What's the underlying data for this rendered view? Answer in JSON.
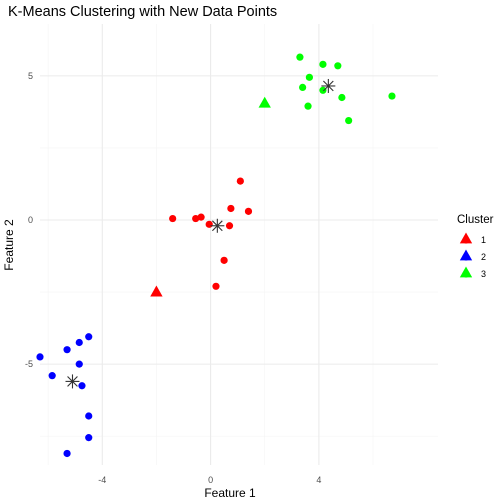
{
  "chart_data": {
    "type": "scatter",
    "title": "K-Means Clustering with New Data Points",
    "xlabel": "Feature 1",
    "ylabel": "Feature 2",
    "xlim": [
      -6.3,
      8.4
    ],
    "ylim": [
      -8.5,
      6.8
    ],
    "x_ticks": [
      -4,
      0,
      4
    ],
    "y_ticks": [
      -5,
      0,
      5
    ],
    "grid": true,
    "legend": {
      "title": "Cluster",
      "position": "right",
      "entries": [
        {
          "label": "1",
          "color": "#FF0000"
        },
        {
          "label": "2",
          "color": "#0000FF"
        },
        {
          "label": "3",
          "color": "#00FF00"
        }
      ]
    },
    "series": [
      {
        "cluster": "1",
        "color": "#FF0000",
        "points": [
          {
            "x": 1.1,
            "y": 1.35
          },
          {
            "x": 1.4,
            "y": 0.3
          },
          {
            "x": 0.75,
            "y": 0.4
          },
          {
            "x": -0.35,
            "y": 0.1
          },
          {
            "x": -0.55,
            "y": 0.05
          },
          {
            "x": -1.4,
            "y": 0.05
          },
          {
            "x": -0.05,
            "y": -0.15
          },
          {
            "x": 0.7,
            "y": -0.2
          },
          {
            "x": 0.5,
            "y": -1.4
          },
          {
            "x": 0.2,
            "y": -2.3
          }
        ]
      },
      {
        "cluster": "2",
        "color": "#0000FF",
        "points": [
          {
            "x": -4.5,
            "y": -4.05
          },
          {
            "x": -4.85,
            "y": -4.25
          },
          {
            "x": -5.3,
            "y": -4.5
          },
          {
            "x": -6.3,
            "y": -4.75
          },
          {
            "x": -4.85,
            "y": -5.0
          },
          {
            "x": -5.85,
            "y": -5.4
          },
          {
            "x": -4.75,
            "y": -5.75
          },
          {
            "x": -4.5,
            "y": -6.8
          },
          {
            "x": -4.5,
            "y": -7.55
          },
          {
            "x": -5.3,
            "y": -8.1
          }
        ]
      },
      {
        "cluster": "3",
        "color": "#00FF00",
        "points": [
          {
            "x": 3.3,
            "y": 5.65
          },
          {
            "x": 4.15,
            "y": 5.4
          },
          {
            "x": 4.7,
            "y": 5.35
          },
          {
            "x": 3.65,
            "y": 4.95
          },
          {
            "x": 3.4,
            "y": 4.6
          },
          {
            "x": 4.15,
            "y": 4.5
          },
          {
            "x": 4.85,
            "y": 4.25
          },
          {
            "x": 6.7,
            "y": 4.3
          },
          {
            "x": 3.6,
            "y": 3.95
          },
          {
            "x": 5.1,
            "y": 3.45
          }
        ]
      }
    ],
    "new_points": [
      {
        "cluster": "1",
        "color": "#FF0000",
        "x": -2.0,
        "y": -2.5
      },
      {
        "cluster": "3",
        "color": "#00FF00",
        "x": 2.0,
        "y": 4.05
      }
    ],
    "centroids": [
      {
        "cluster": "1",
        "x": 0.25,
        "y": -0.2
      },
      {
        "cluster": "2",
        "x": -5.1,
        "y": -5.6
      },
      {
        "cluster": "3",
        "x": 4.35,
        "y": 4.65
      }
    ]
  }
}
